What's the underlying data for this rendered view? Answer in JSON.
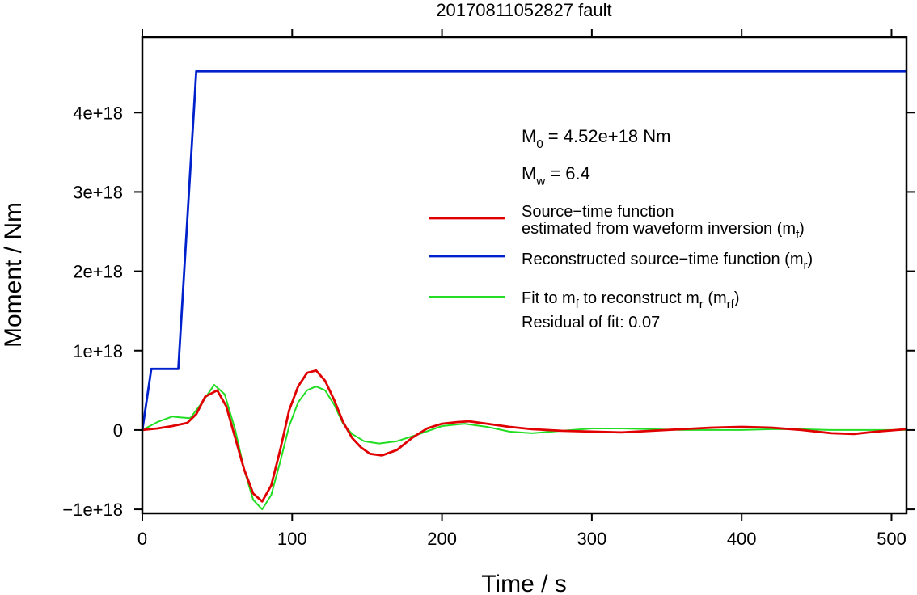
{
  "chart_data": {
    "type": "line",
    "title": "20170811052827 fault",
    "xlabel": "Time / s",
    "ylabel": "Moment / Nm",
    "xlim": [
      0,
      510
    ],
    "ylim": [
      -1.05e+18,
      4.95e+18
    ],
    "x_ticks": [
      0,
      100,
      200,
      300,
      400,
      500
    ],
    "x_tick_labels": [
      "0",
      "100",
      "200",
      "300",
      "400",
      "500"
    ],
    "y_ticks": [
      -1e+18,
      0,
      1e+18,
      2e+18,
      3e+18,
      4e+18
    ],
    "y_tick_labels": [
      "−1e+18",
      "0",
      "1e+18",
      "2e+18",
      "3e+18",
      "4e+18"
    ],
    "grid": false,
    "legend_position": "right",
    "annotations": {
      "m0_main": "M",
      "m0_sub": "0",
      "m0_rest": " = 4.52e+18 Nm",
      "mw_main": "M",
      "mw_sub": "w",
      "mw_rest": " = 6.4",
      "residual": "Residual of fit: 0.07"
    },
    "series": [
      {
        "key": "mf",
        "color": "#e00000",
        "legend_lines": [
          [
            {
              "t": "Source−time function"
            }
          ],
          [
            {
              "t": "estimated from waveform inversion (m"
            },
            {
              "t": "f",
              "sub": true
            },
            {
              "t": ")"
            }
          ]
        ],
        "x": [
          0,
          10,
          20,
          30,
          36,
          42,
          50,
          56,
          62,
          68,
          74,
          80,
          86,
          92,
          98,
          104,
          110,
          116,
          122,
          128,
          134,
          140,
          146,
          152,
          160,
          170,
          180,
          190,
          200,
          210,
          218,
          230,
          245,
          260,
          280,
          300,
          320,
          340,
          360,
          380,
          400,
          420,
          440,
          460,
          475,
          490,
          510
        ],
        "y": [
          0,
          2e+16,
          5e+16,
          9e+16,
          2e+17,
          4.2e+17,
          5e+17,
          3e+17,
          -1e+17,
          -5e+17,
          -8e+17,
          -9e+17,
          -7e+17,
          -2.5e+17,
          2.5e+17,
          5.5e+17,
          7.2e+17,
          7.5e+17,
          6.2e+17,
          3.8e+17,
          1e+17,
          -1e+17,
          -2.2e+17,
          -3e+17,
          -3.2e+17,
          -2.5e+17,
          -1e+17,
          2e+16,
          8e+16,
          1e+17,
          1.1e+17,
          8e+16,
          4e+16,
          1e+16,
          -1e+16,
          -2e+16,
          -3e+16,
          -1e+16,
          1e+16,
          3e+16,
          4e+16,
          3e+16,
          0,
          -4e+16,
          -5e+16,
          -2e+16,
          1e+16
        ]
      },
      {
        "key": "mr",
        "color": "#0022cc",
        "legend_lines": [
          [
            {
              "t": "Reconstructed source−time function (m"
            },
            {
              "t": "r",
              "sub": true
            },
            {
              "t": ")"
            }
          ]
        ],
        "x": [
          0,
          6,
          24,
          36,
          40,
          510
        ],
        "y": [
          0,
          7.7e+17,
          7.7e+17,
          4.52e+18,
          4.52e+18,
          4.52e+18
        ]
      },
      {
        "key": "mrf",
        "color": "#22dd22",
        "legend_lines": [
          [
            {
              "t": "Fit to m"
            },
            {
              "t": "f",
              "sub": true
            },
            {
              "t": " to reconstruct m"
            },
            {
              "t": "r",
              "sub": true
            },
            {
              "t": " (m"
            },
            {
              "t": "rf",
              "sub": true
            },
            {
              "t": ")"
            }
          ]
        ],
        "x": [
          0,
          10,
          20,
          25,
          32,
          40,
          48,
          55,
          62,
          68,
          74,
          80,
          86,
          92,
          98,
          104,
          110,
          116,
          122,
          128,
          134,
          140,
          148,
          158,
          170,
          185,
          200,
          215,
          230,
          245,
          260,
          280,
          300,
          320,
          340,
          360,
          380,
          400,
          420,
          440,
          460,
          480,
          510
        ],
        "y": [
          0,
          1e+17,
          1.7e+17,
          1.6e+17,
          1.5e+17,
          3.5e+17,
          5.7e+17,
          4.5e+17,
          0,
          -5e+17,
          -8.8e+17,
          -1e+18,
          -8.2e+17,
          -4e+17,
          5e+16,
          3.5e+17,
          5e+17,
          5.5e+17,
          5e+17,
          3.2e+17,
          8e+16,
          -5e+16,
          -1.4e+17,
          -1.7e+17,
          -1.4e+17,
          -5e+16,
          5e+16,
          8e+16,
          4e+16,
          -2e+16,
          -4e+16,
          -1e+16,
          2e+16,
          2e+16,
          1e+16,
          0,
          0,
          0,
          1e+16,
          1e+16,
          0,
          0,
          0
        ]
      }
    ]
  }
}
